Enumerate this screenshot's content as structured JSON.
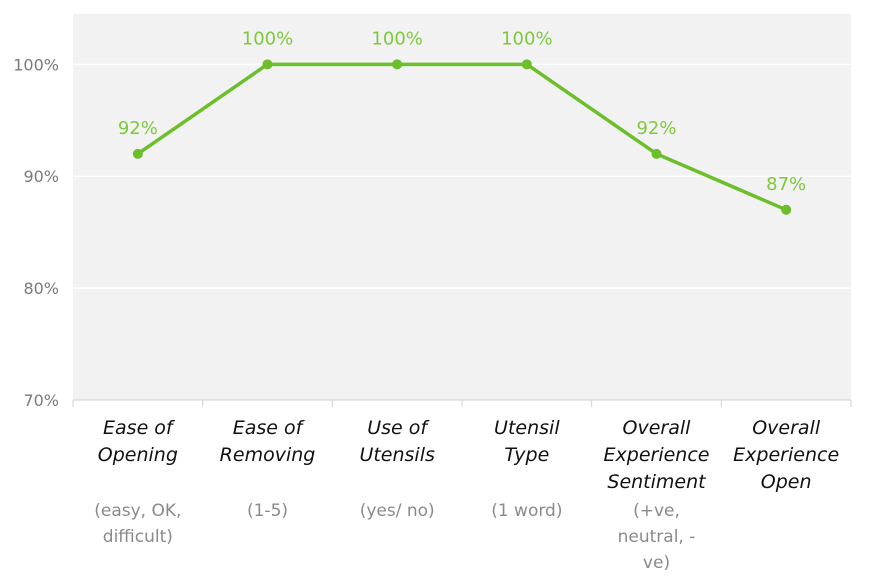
{
  "chart_data": {
    "type": "line",
    "categories": [
      {
        "label": [
          "Ease of",
          "Opening"
        ],
        "sublabel": [
          "(easy, OK,",
          "difficult)"
        ]
      },
      {
        "label": [
          "Ease of",
          "Removing"
        ],
        "sublabel": [
          "(1-5)"
        ]
      },
      {
        "label": [
          "Use of",
          "Utensils"
        ],
        "sublabel": [
          "(yes/ no)"
        ]
      },
      {
        "label": [
          "Utensil",
          "Type"
        ],
        "sublabel": [
          "(1 word)"
        ]
      },
      {
        "label": [
          "Overall",
          "Experience",
          "Sentiment"
        ],
        "sublabel": [
          "(+ve,",
          "neutral, -",
          "ve)"
        ]
      },
      {
        "label": [
          "Overall",
          "Experience",
          "Open"
        ],
        "sublabel": []
      }
    ],
    "values": [
      92,
      100,
      100,
      100,
      92,
      87
    ],
    "data_labels": [
      "92%",
      "100%",
      "100%",
      "100%",
      "92%",
      "87%"
    ],
    "ylim": [
      70,
      104.5
    ],
    "yticks": [
      70,
      80,
      90,
      100
    ],
    "ytick_labels": [
      "70%",
      "80%",
      "90%",
      "100%"
    ],
    "grid": true,
    "line_color": "#6cbf2b",
    "label_color": "#7dc93b",
    "panel_color": "#f2f2f2"
  }
}
